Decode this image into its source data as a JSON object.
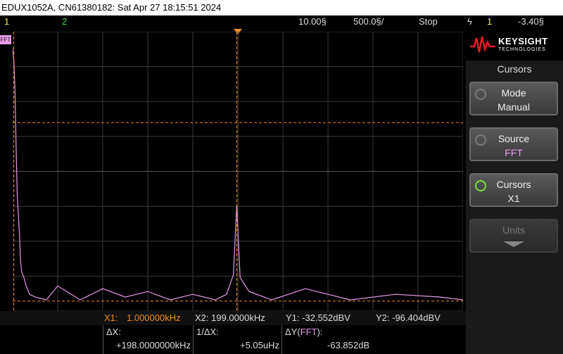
{
  "title_bar": {
    "text": "EDUX1052A, CN61380182: Sat Apr 27 18:15:51 2024"
  },
  "status_bar": {
    "ch1": "1",
    "ch2": "2",
    "timebase": "10.00§",
    "rate": "500.0§/",
    "run_state": "Stop",
    "trigger_icon": "ϟ",
    "trigger_channel": "1",
    "trigger_level": "-3.40§"
  },
  "fft_tag": "FFT",
  "logo": {
    "name": "KEYSIGHT",
    "sub": "TECHNOLOGIES"
  },
  "menu": {
    "title": "Cursors",
    "softkeys": [
      {
        "label": "Mode",
        "value": "Manual",
        "active": false
      },
      {
        "label": "Source",
        "value": "FFT",
        "active": false
      },
      {
        "label": "Cursors",
        "value": "X1",
        "active": true
      },
      {
        "label": "Units",
        "value": "",
        "active": false,
        "disabled": true
      }
    ]
  },
  "readout": {
    "x1_label": "X1:",
    "x1_value": "1.000000kHz",
    "x2": "X2:  199.0000kHz",
    "y1": "Y1: -32.552dBV",
    "y2": "Y2: -96.404dBV",
    "dx_label": "ΔX:",
    "dx_value": "+198.0000000kHz",
    "inv_dx_label": "1/ΔX:",
    "inv_dx_value": "+5.05uHz",
    "dy_label": "ΔY(",
    "dy_source": "FFT",
    "dy_close": "):",
    "dy_value": "-63.852dB"
  },
  "colors": {
    "ch1": "#f5e642",
    "ch2": "#3ee03e",
    "fft_trace": "#e89ae8",
    "cursor": "#f08a24",
    "grid": "#3a3a3a"
  },
  "chart_data": {
    "type": "line",
    "series": [
      {
        "name": "FFT",
        "x": [
          0,
          1,
          2,
          3,
          4,
          5,
          6,
          7,
          8,
          10,
          12,
          15,
          20,
          30,
          40,
          60,
          80,
          100,
          120,
          140,
          160,
          180,
          190,
          196,
          199,
          202,
          210,
          230,
          260,
          300,
          340,
          380,
          400
        ],
        "y": [
          -6,
          -10,
          -20,
          -40,
          -58,
          -65,
          -72,
          -82,
          -86,
          -88,
          -91,
          -94,
          -95,
          -96,
          -91,
          -96,
          -92,
          -95,
          -93,
          -96,
          -94,
          -96,
          -94,
          -87,
          -62,
          -88,
          -93,
          -96,
          -92,
          -96,
          -94,
          -95,
          -96
        ]
      }
    ],
    "cursors": {
      "x1": 1.0,
      "x2": 199.0,
      "y1": -32.552,
      "y2": -96.404
    },
    "xlim": [
      0,
      400
    ],
    "ylim": [
      -100,
      0
    ],
    "grid": true
  }
}
